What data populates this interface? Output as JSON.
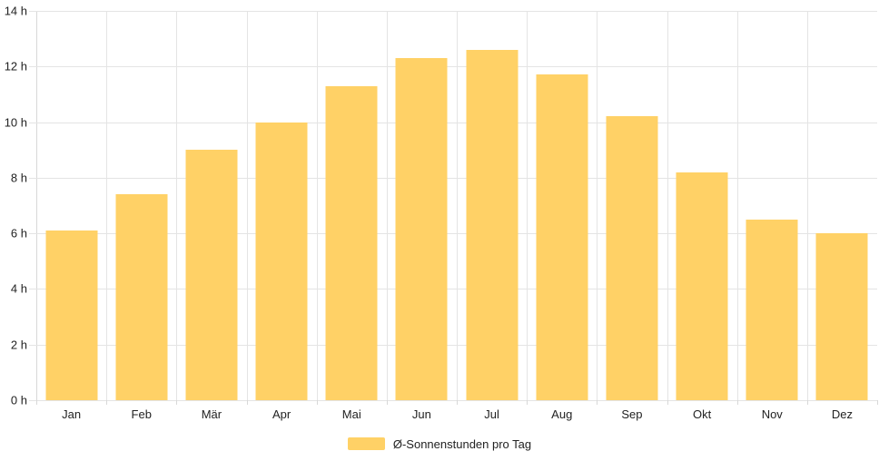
{
  "chart_data": {
    "type": "bar",
    "categories": [
      "Jan",
      "Feb",
      "Mär",
      "Apr",
      "Mai",
      "Jun",
      "Jul",
      "Aug",
      "Sep",
      "Okt",
      "Nov",
      "Dez"
    ],
    "series": [
      {
        "name": "Ø-Sonnenstunden pro Tag",
        "values": [
          6.1,
          7.4,
          9.0,
          10.0,
          11.3,
          12.3,
          12.6,
          11.7,
          10.2,
          8.2,
          6.5,
          6.0
        ]
      }
    ],
    "unit": "h",
    "ylim": [
      0,
      14
    ],
    "y_tick_step": 2,
    "y_tick_labels": [
      "0 h",
      "2 h",
      "4 h",
      "6 h",
      "8 h",
      "10 h",
      "12 h",
      "14 h"
    ],
    "xlabel": "",
    "ylabel": "",
    "grid": "on",
    "legend_position": "bottom-center",
    "colors": {
      "bar": "#FFD166",
      "grid": "#E4E4E4",
      "axis": "#D8D8D8",
      "text": "#222222",
      "background": "#FFFFFF"
    }
  },
  "legend": {
    "label": "Ø-Sonnenstunden pro Tag"
  }
}
